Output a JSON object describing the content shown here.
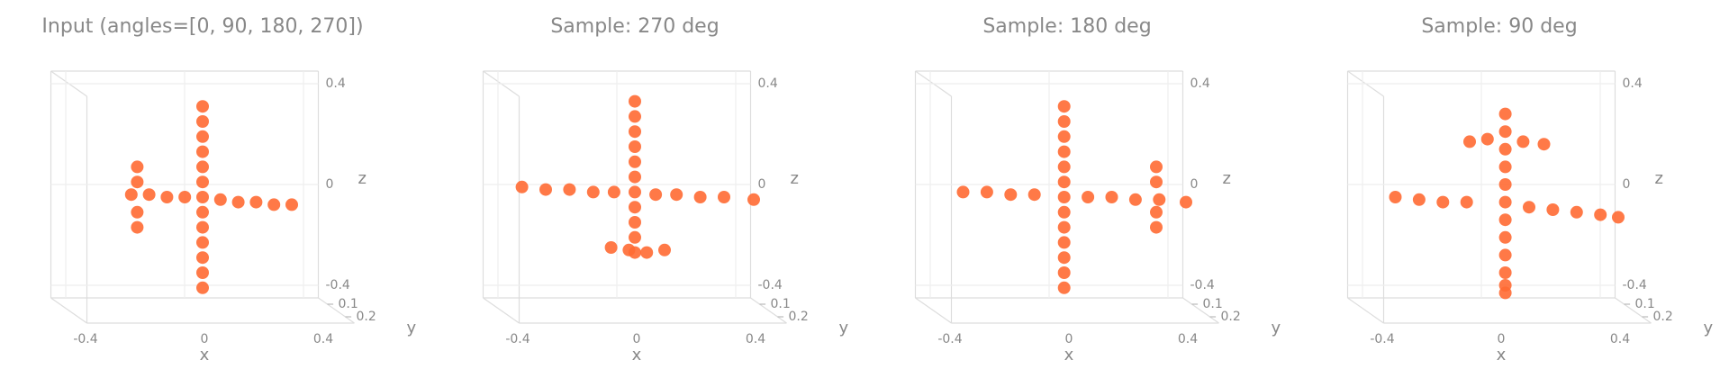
{
  "chart_data": [
    {
      "type": "scatter3d",
      "title": "Input (angles=[0, 90, 180, 270])",
      "color": "#ff6a33",
      "x": [
        0,
        0,
        0,
        0,
        0,
        0,
        0,
        0,
        0,
        0,
        0,
        0,
        0,
        -0.24,
        -0.18,
        -0.12,
        -0.06,
        0.06,
        0.12,
        0.18,
        0.24,
        0.3,
        -0.22,
        -0.22,
        -0.22,
        -0.22
      ],
      "y": [
        0.15,
        0.15,
        0.15,
        0.15,
        0.15,
        0.15,
        0.15,
        0.15,
        0.15,
        0.15,
        0.15,
        0.15,
        0.15,
        0.15,
        0.15,
        0.15,
        0.15,
        0.15,
        0.15,
        0.15,
        0.15,
        0.15,
        0.15,
        0.15,
        0.15,
        0.15
      ],
      "z": [
        0.36,
        0.3,
        0.24,
        0.18,
        0.12,
        0.06,
        0,
        -0.06,
        -0.12,
        -0.18,
        -0.24,
        -0.3,
        -0.36,
        0.01,
        0.01,
        0,
        0,
        -0.01,
        -0.02,
        -0.02,
        -0.03,
        -0.03,
        0.12,
        0.06,
        -0.06,
        -0.12
      ],
      "xlim": [
        -0.45,
        0.45
      ],
      "ylim": [
        0.05,
        0.25
      ],
      "zlim": [
        -0.45,
        0.45
      ],
      "xticks": [
        -0.4,
        0.0,
        0.4
      ],
      "yticks": [
        0.1,
        0.2
      ],
      "zticks": [
        -0.4,
        0.0,
        0.4
      ],
      "xlabel": "x",
      "ylabel": "y",
      "zlabel": "z"
    },
    {
      "type": "scatter3d",
      "title": "Sample: 270 deg",
      "color": "#ff6a33",
      "x": [
        0,
        0,
        0,
        0,
        0,
        0,
        0,
        0,
        0,
        0,
        0,
        -0.38,
        -0.3,
        -0.22,
        -0.14,
        -0.07,
        0.07,
        0.14,
        0.22,
        0.3,
        0.4,
        -0.08,
        -0.02,
        0.04,
        0.1
      ],
      "y": [
        0.15,
        0.15,
        0.15,
        0.15,
        0.15,
        0.15,
        0.15,
        0.15,
        0.15,
        0.15,
        0.15,
        0.15,
        0.15,
        0.15,
        0.15,
        0.15,
        0.15,
        0.15,
        0.15,
        0.15,
        0.15,
        0.15,
        0.15,
        0.15,
        0.15
      ],
      "z": [
        0.38,
        0.32,
        0.26,
        0.2,
        0.14,
        0.08,
        0.02,
        -0.04,
        -0.1,
        -0.16,
        -0.22,
        0.04,
        0.03,
        0.03,
        0.02,
        0.02,
        0.01,
        0.01,
        0,
        0,
        -0.01,
        -0.2,
        -0.21,
        -0.22,
        -0.21
      ],
      "xlim": [
        -0.45,
        0.45
      ],
      "ylim": [
        0.05,
        0.25
      ],
      "zlim": [
        -0.45,
        0.45
      ],
      "xticks": [
        -0.4,
        0.0,
        0.4
      ],
      "yticks": [
        0.1,
        0.2
      ],
      "zticks": [
        -0.4,
        0.0,
        0.4
      ],
      "xlabel": "x",
      "ylabel": "y",
      "zlabel": "z"
    },
    {
      "type": "scatter3d",
      "title": "Sample: 180 deg",
      "color": "#ff6a33",
      "x": [
        -0.01,
        -0.01,
        -0.01,
        -0.01,
        -0.01,
        -0.01,
        -0.01,
        -0.01,
        -0.01,
        -0.01,
        -0.01,
        -0.01,
        -0.01,
        -0.35,
        -0.27,
        -0.19,
        -0.11,
        0.07,
        0.15,
        0.23,
        0.31,
        0.4,
        0.3,
        0.3,
        0.3,
        0.3
      ],
      "y": [
        0.15,
        0.15,
        0.15,
        0.15,
        0.15,
        0.15,
        0.15,
        0.15,
        0.15,
        0.15,
        0.15,
        0.15,
        0.15,
        0.15,
        0.15,
        0.15,
        0.15,
        0.15,
        0.15,
        0.15,
        0.15,
        0.15,
        0.15,
        0.15,
        0.15,
        0.15
      ],
      "z": [
        0.36,
        0.3,
        0.24,
        0.18,
        0.12,
        0.06,
        0,
        -0.06,
        -0.12,
        -0.18,
        -0.24,
        -0.3,
        -0.36,
        0.02,
        0.02,
        0.01,
        0.01,
        0,
        0,
        -0.01,
        -0.01,
        -0.02,
        0.12,
        0.06,
        -0.06,
        -0.12
      ],
      "xlim": [
        -0.45,
        0.45
      ],
      "ylim": [
        0.05,
        0.25
      ],
      "zlim": [
        -0.45,
        0.45
      ],
      "xticks": [
        -0.4,
        0.0,
        0.4
      ],
      "yticks": [
        0.1,
        0.2
      ],
      "zticks": [
        -0.4,
        0.0,
        0.4
      ],
      "xlabel": "x",
      "ylabel": "y",
      "zlabel": "z"
    },
    {
      "type": "scatter3d",
      "title": "Sample: 90 deg",
      "color": "#ff6a33",
      "x": [
        0.02,
        0.02,
        0.02,
        0.02,
        0.02,
        0.02,
        0.02,
        0.02,
        0.02,
        0.02,
        0.02,
        0.02,
        -0.35,
        -0.27,
        -0.19,
        -0.11,
        0.1,
        0.18,
        0.26,
        0.34,
        0.4,
        -0.1,
        -0.04,
        0.08,
        0.15
      ],
      "y": [
        0.15,
        0.15,
        0.15,
        0.15,
        0.15,
        0.15,
        0.15,
        0.15,
        0.15,
        0.15,
        0.15,
        0.15,
        0.15,
        0.15,
        0.15,
        0.15,
        0.15,
        0.15,
        0.15,
        0.15,
        0.15,
        0.15,
        0.15,
        0.15,
        0.15
      ],
      "z": [
        0.33,
        0.26,
        0.19,
        0.12,
        0.05,
        -0.02,
        -0.09,
        -0.16,
        -0.23,
        -0.3,
        -0.35,
        -0.38,
        0,
        -0.01,
        -0.02,
        -0.02,
        -0.04,
        -0.05,
        -0.06,
        -0.07,
        -0.08,
        0.22,
        0.23,
        0.22,
        0.21
      ],
      "xlim": [
        -0.45,
        0.45
      ],
      "ylim": [
        0.05,
        0.25
      ],
      "zlim": [
        -0.45,
        0.45
      ],
      "xticks": [
        -0.4,
        0.0,
        0.4
      ],
      "yticks": [
        0.1,
        0.2
      ],
      "zticks": [
        -0.4,
        0.0,
        0.4
      ],
      "xlabel": "x",
      "ylabel": "y",
      "zlabel": "z"
    }
  ]
}
